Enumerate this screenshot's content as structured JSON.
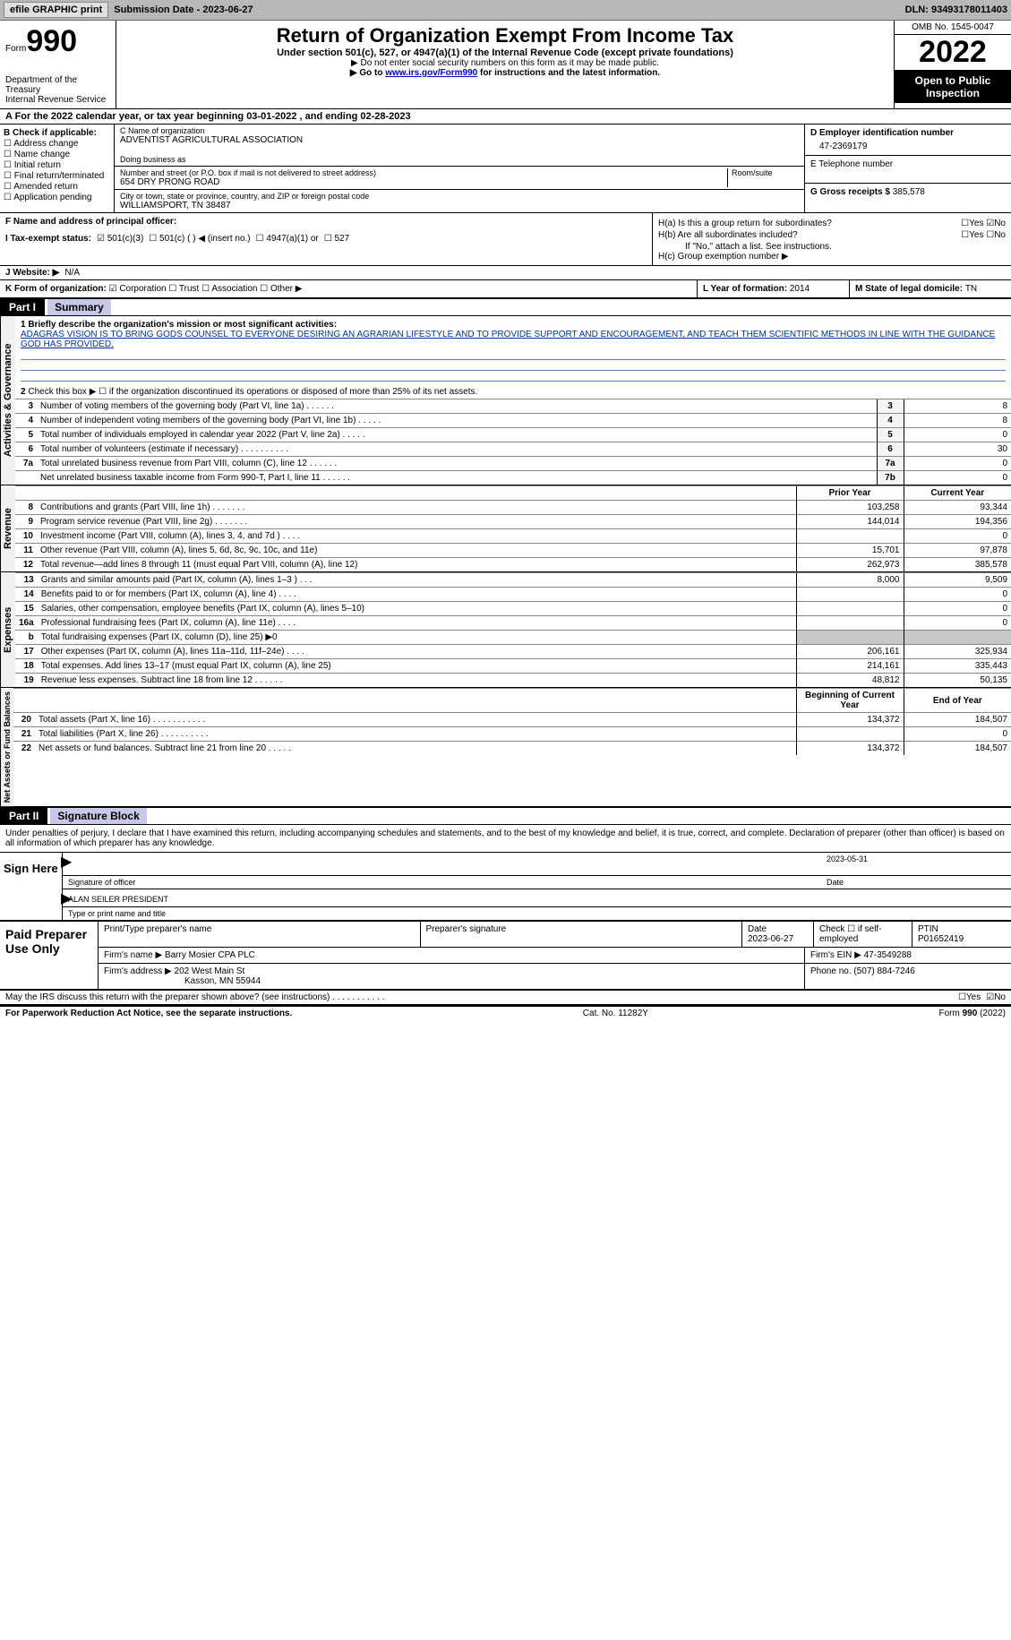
{
  "topbar": {
    "efile": "efile GRAPHIC print",
    "subdate_label": "Submission Date - ",
    "subdate": "2023-06-27",
    "dln_label": "DLN: ",
    "dln": "93493178011403"
  },
  "header": {
    "form_label": "Form",
    "form_num": "990",
    "dept": "Department of the Treasury\nInternal Revenue Service",
    "title": "Return of Organization Exempt From Income Tax",
    "sub": "Under section 501(c), 527, or 4947(a)(1) of the Internal Revenue Code (except private foundations)",
    "note1": "▶ Do not enter social security numbers on this form as it may be made public.",
    "note2_pre": "▶ Go to ",
    "note2_link": "www.irs.gov/Form990",
    "note2_post": " for instructions and the latest information.",
    "omb": "OMB No. 1545-0047",
    "year": "2022",
    "open": "Open to Public Inspection"
  },
  "row_a": "A For the 2022 calendar year, or tax year beginning 03-01-2022    , and ending 02-28-2023",
  "col_b": {
    "hdr": "B Check if applicable:",
    "items": [
      "Address change",
      "Name change",
      "Initial return",
      "Final return/terminated",
      "Amended return",
      "Application pending"
    ]
  },
  "col_c": {
    "name_lbl": "C Name of organization",
    "name": "ADVENTIST AGRICULTURAL ASSOCIATION",
    "dba_lbl": "Doing business as",
    "dba": "",
    "addr_lbl": "Number and street (or P.O. box if mail is not delivered to street address)",
    "addr": "654 DRY PRONG ROAD",
    "room_lbl": "Room/suite",
    "city_lbl": "City or town, state or province, country, and ZIP or foreign postal code",
    "city": "WILLIAMSPORT, TN   38487"
  },
  "col_d": {
    "ein_lbl": "D Employer identification number",
    "ein": "47-2369179",
    "tel_lbl": "E Telephone number",
    "tel": "",
    "gross_lbl": "G Gross receipts $ ",
    "gross": "385,578"
  },
  "col_f": "F  Name and address of principal officer:",
  "col_h": {
    "ha": "H(a)  Is this a group return for subordinates?",
    "hb": "H(b)  Are all subordinates included?",
    "hb_note": "If \"No,\" attach a list. See instructions.",
    "hc": "H(c)  Group exemption number ▶",
    "yes": "Yes",
    "no": "No"
  },
  "row_i": {
    "lbl": "I   Tax-exempt status:",
    "o1": "501(c)(3)",
    "o2": "501(c) (  ) ◀ (insert no.)",
    "o3": "4947(a)(1) or",
    "o4": "527"
  },
  "row_j": {
    "lbl": "J   Website: ▶",
    "val": "N/A"
  },
  "row_k": {
    "lbl": "K Form of organization:",
    "o1": "Corporation",
    "o2": "Trust",
    "o3": "Association",
    "o4": "Other ▶"
  },
  "row_l": {
    "lbl": "L Year of formation: ",
    "val": "2014"
  },
  "row_m": {
    "lbl": "M State of legal domicile: ",
    "val": "TN"
  },
  "part1": {
    "hdr": "Part I",
    "title": "Summary",
    "q1_lbl": "1  Briefly describe the organization's mission or most significant activities:",
    "q1_val": "ADAGRAS VISION IS TO BRING GODS COUNSEL TO EVERYONE DESIRING AN AGRARIAN LIFESTYLE AND TO PROVIDE SUPPORT AND ENCOURAGEMENT, AND TEACH THEM SCIENTIFIC METHODS IN LINE WITH THE GUIDANCE GOD HAS PROVIDED.",
    "q2": "Check this box ▶ ☐  if the organization discontinued its operations or disposed of more than 25% of its net assets.",
    "lines_ag": [
      {
        "n": "3",
        "t": "Number of voting members of the governing body (Part VI, line 1a)   .    .    .    .    .    .",
        "box": "3",
        "v": "8"
      },
      {
        "n": "4",
        "t": "Number of independent voting members of the governing body (Part VI, line 1b)   .    .    .    .    .",
        "box": "4",
        "v": "8"
      },
      {
        "n": "5",
        "t": "Total number of individuals employed in calendar year 2022 (Part V, line 2a)   .    .    .    .    .",
        "box": "5",
        "v": "0"
      },
      {
        "n": "6",
        "t": "Total number of volunteers (estimate if necessary)    .    .    .    .    .    .    .    .    .    .",
        "box": "6",
        "v": "30"
      },
      {
        "n": "7a",
        "t": "Total unrelated business revenue from Part VIII, column (C), line 12   .    .    .    .    .    .",
        "box": "7a",
        "v": "0"
      },
      {
        "n": "",
        "t": "Net unrelated business taxable income from Form 990-T, Part I, line 11   .    .    .    .    .    .",
        "box": "7b",
        "v": "0"
      }
    ],
    "col_hdr_prior": "Prior Year",
    "col_hdr_curr": "Current Year",
    "lines_rev": [
      {
        "n": "8",
        "t": "Contributions and grants (Part VIII, line 1h)    .    .    .    .    .    .    .",
        "p": "103,258",
        "c": "93,344"
      },
      {
        "n": "9",
        "t": "Program service revenue (Part VIII, line 2g)    .    .    .    .    .    .    .",
        "p": "144,014",
        "c": "194,356"
      },
      {
        "n": "10",
        "t": "Investment income (Part VIII, column (A), lines 3, 4, and 7d )    .    .    .    .",
        "p": "",
        "c": "0"
      },
      {
        "n": "11",
        "t": "Other revenue (Part VIII, column (A), lines 5, 6d, 8c, 9c, 10c, and 11e)",
        "p": "15,701",
        "c": "97,878"
      },
      {
        "n": "12",
        "t": "Total revenue—add lines 8 through 11 (must equal Part VIII, column (A), line 12)",
        "p": "262,973",
        "c": "385,578"
      }
    ],
    "lines_exp": [
      {
        "n": "13",
        "t": "Grants and similar amounts paid (Part IX, column (A), lines 1–3 )   .    .    .",
        "p": "8,000",
        "c": "9,509"
      },
      {
        "n": "14",
        "t": "Benefits paid to or for members (Part IX, column (A), line 4)   .    .    .    .",
        "p": "",
        "c": "0"
      },
      {
        "n": "15",
        "t": "Salaries, other compensation, employee benefits (Part IX, column (A), lines 5–10)",
        "p": "",
        "c": "0"
      },
      {
        "n": "16a",
        "t": "Professional fundraising fees (Part IX, column (A), line 11e)   .    .    .    .",
        "p": "",
        "c": "0"
      },
      {
        "n": "b",
        "t": "Total fundraising expenses (Part IX, column (D), line 25) ▶0",
        "p": "shade",
        "c": "shade"
      },
      {
        "n": "17",
        "t": "Other expenses (Part IX, column (A), lines 11a–11d, 11f–24e)   .    .    .    .",
        "p": "206,161",
        "c": "325,934"
      },
      {
        "n": "18",
        "t": "Total expenses. Add lines 13–17 (must equal Part IX, column (A), line 25)",
        "p": "214,161",
        "c": "335,443"
      },
      {
        "n": "19",
        "t": "Revenue less expenses. Subtract line 18 from line 12   .    .    .    .    .    .",
        "p": "48,812",
        "c": "50,135"
      }
    ],
    "col_hdr_beg": "Beginning of Current Year",
    "col_hdr_end": "End of Year",
    "lines_net": [
      {
        "n": "20",
        "t": "Total assets (Part X, line 16)   .    .    .    .    .    .    .    .    .    .    .",
        "p": "134,372",
        "c": "184,507"
      },
      {
        "n": "21",
        "t": "Total liabilities (Part X, line 26)   .    .    .    .    .    .    .    .    .    .",
        "p": "",
        "c": "0"
      },
      {
        "n": "22",
        "t": "Net assets or fund balances. Subtract line 21 from line 20   .    .    .    .    .",
        "p": "134,372",
        "c": "184,507"
      }
    ],
    "vlabel_ag": "Activities & Governance",
    "vlabel_rev": "Revenue",
    "vlabel_exp": "Expenses",
    "vlabel_net": "Net Assets or Fund Balances"
  },
  "part2": {
    "hdr": "Part II",
    "title": "Signature Block",
    "decl": "Under penalties of perjury, I declare that I have examined this return, including accompanying schedules and statements, and to the best of my knowledge and belief, it is true, correct, and complete. Declaration of preparer (other than officer) is based on all information of which preparer has any knowledge.",
    "sign_here": "Sign Here",
    "sig_officer": "Signature of officer",
    "sig_date": "2023-05-31",
    "date_lbl": "Date",
    "name_title": "ALAN SEILER  PRESIDENT",
    "name_title_lbl": "Type or print name and title",
    "paid": "Paid Preparer Use Only",
    "p_name_lbl": "Print/Type preparer's name",
    "p_sig_lbl": "Preparer's signature",
    "p_date_lbl": "Date",
    "p_date": "2023-06-27",
    "p_chk_lbl": "Check ☐ if self-employed",
    "ptin_lbl": "PTIN",
    "ptin": "P01652419",
    "firm_name_lbl": "Firm's name    ▶ ",
    "firm_name": "Barry Mosier CPA PLC",
    "firm_ein_lbl": "Firm's EIN ▶ ",
    "firm_ein": "47-3549288",
    "firm_addr_lbl": "Firm's address ▶ ",
    "firm_addr": "202 West Main St",
    "firm_city": "Kasson, MN  55944",
    "phone_lbl": "Phone no. ",
    "phone": "(507) 884-7246",
    "discuss": "May the IRS discuss this return with the preparer shown above? (see instructions)    .    .    .    .    .    .    .    .    .    .    ."
  },
  "footer": {
    "left": "For Paperwork Reduction Act Notice, see the separate instructions.",
    "mid": "Cat. No. 11282Y",
    "right": "Form 990 (2022)"
  }
}
